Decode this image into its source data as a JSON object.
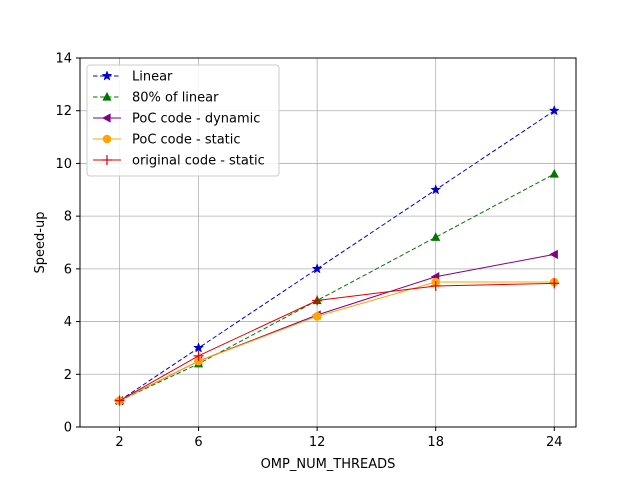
{
  "chart_data": {
    "type": "line",
    "title": "",
    "xlabel": "OMP_NUM_THREADS",
    "ylabel": "Speed-up",
    "x": [
      2,
      6,
      12,
      18,
      24
    ],
    "x_tick_labels": [
      "2",
      "6",
      "12",
      "18",
      "24"
    ],
    "xlim": [
      0.0,
      25.1
    ],
    "ylim": [
      0,
      14
    ],
    "y_ticks": [
      0,
      2,
      4,
      6,
      8,
      10,
      12,
      14
    ],
    "y_tick_labels": [
      "0",
      "2",
      "4",
      "6",
      "8",
      "10",
      "12",
      "14"
    ],
    "grid": true,
    "legend_position": "upper-left",
    "series": [
      {
        "name": "Linear",
        "color": "#0000cc",
        "linestyle": "dashed",
        "marker": "star",
        "values": [
          1,
          3,
          6,
          9,
          12
        ]
      },
      {
        "name": "80% of linear",
        "color": "#007700",
        "linestyle": "dashed",
        "marker": "triangle-up",
        "values": [
          1,
          2.4,
          4.8,
          7.2,
          9.6
        ]
      },
      {
        "name": "PoC code - dynamic",
        "color": "#800080",
        "linestyle": "solid",
        "marker": "triangle-left",
        "values": [
          1,
          2.5,
          4.25,
          5.7,
          6.55
        ]
      },
      {
        "name": "PoC code - static",
        "color": "#ffa500",
        "linestyle": "solid",
        "marker": "circle",
        "values": [
          1,
          2.5,
          4.2,
          5.5,
          5.5
        ]
      },
      {
        "name": "original code - static",
        "color": "#dd0000",
        "linestyle": "solid",
        "marker": "plus",
        "values": [
          1,
          2.7,
          4.8,
          5.35,
          5.45
        ]
      }
    ]
  }
}
